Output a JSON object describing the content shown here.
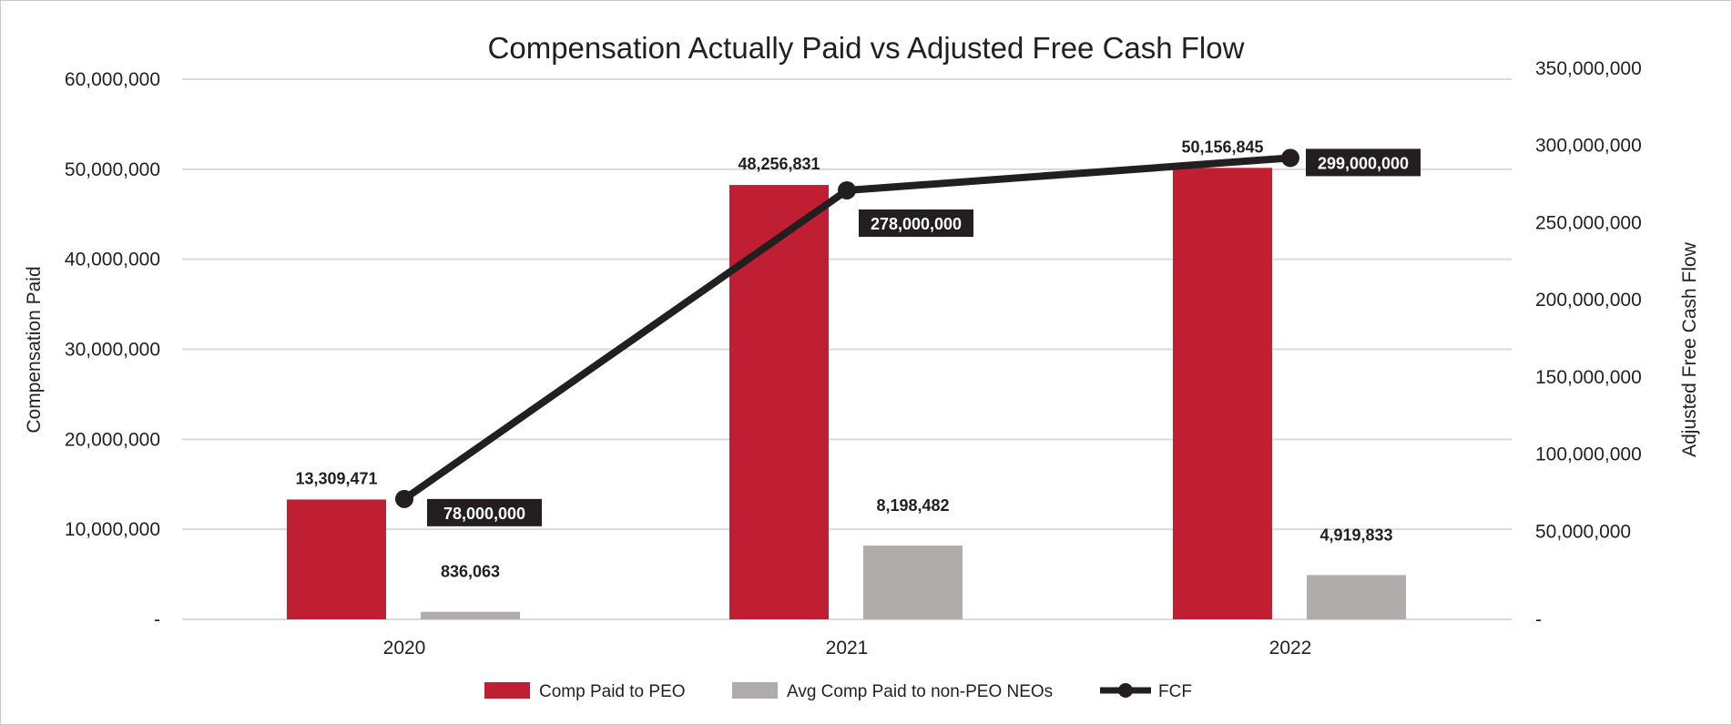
{
  "chart_data": {
    "type": "bar",
    "title": "Compensation Actually Paid vs Adjusted Free Cash Flow",
    "categories": [
      "2020",
      "2021",
      "2022"
    ],
    "ylabel": "Compensation Paid",
    "y2label": "Adjusted Free Cash Flow",
    "ylim": [
      0,
      60000000
    ],
    "y2lim": [
      0,
      350000000
    ],
    "yticks": [
      "-",
      "10,000,000",
      "20,000,000",
      "30,000,000",
      "40,000,000",
      "50,000,000",
      "60,000,000"
    ],
    "y2ticks": [
      "-",
      "50,000,000",
      "100,000,000",
      "150,000,000",
      "200,000,000",
      "250,000,000",
      "300,000,000",
      "350,000,000"
    ],
    "grid": true,
    "legend_position": "bottom",
    "series": [
      {
        "name": "Comp Paid to PEO",
        "type": "bar",
        "axis": "left",
        "color": "#c01f33",
        "values": [
          13309471,
          48256831,
          50156845
        ],
        "labels": [
          "13,309,471",
          "48,256,831",
          "50,156,845"
        ]
      },
      {
        "name": "Avg Comp Paid to non-PEO NEOs",
        "type": "bar",
        "axis": "left",
        "color": "#b1acac",
        "values": [
          836063,
          8198482,
          4919833
        ],
        "labels": [
          "836,063",
          "8,198,482",
          "4,919,833"
        ]
      },
      {
        "name": "FCF",
        "type": "line",
        "axis": "right",
        "color": "#231f20",
        "values": [
          78000000,
          278000000,
          299000000
        ],
        "labels": [
          "78,000,000",
          "278,000,000",
          "299,000,000"
        ]
      }
    ]
  }
}
